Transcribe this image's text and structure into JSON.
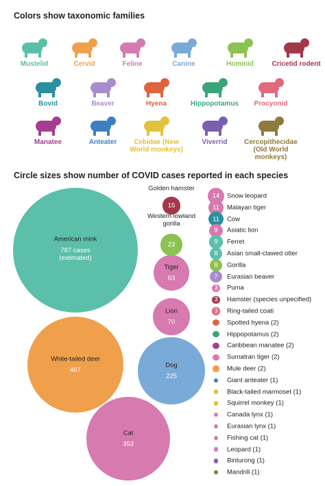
{
  "chart_data": {
    "type": "bubble",
    "legend_title": "Colors show taxonomic families",
    "title": "Circle sizes show number of COVID cases reported in each species",
    "families": [
      {
        "name": "Mustelid",
        "color": "#5bbfa9"
      },
      {
        "name": "Cervid",
        "color": "#f0a04b"
      },
      {
        "name": "Feline",
        "color": "#d77aaf"
      },
      {
        "name": "Canine",
        "color": "#7aaad8"
      },
      {
        "name": "Hominid",
        "color": "#8cc251"
      },
      {
        "name": "Cricetid rodent",
        "color": "#a3384b"
      },
      {
        "name": "Bovid",
        "color": "#2b8fa0"
      },
      {
        "name": "Beaver",
        "color": "#a98bd0"
      },
      {
        "name": "Hyena",
        "color": "#e0623f"
      },
      {
        "name": "Hippopotamus",
        "color": "#3aa57a"
      },
      {
        "name": "Procyonid",
        "color": "#e06a7c"
      },
      {
        "name": "Manatee",
        "color": "#a53d91"
      },
      {
        "name": "Anteater",
        "color": "#3f7fc0"
      },
      {
        "name": "Cebidae (New World monkeys)",
        "color": "#e2c23a"
      },
      {
        "name": "Viverrid",
        "color": "#7a5fb0"
      },
      {
        "name": "Cercopithecidae (Old World monkeys)",
        "color": "#8e7a3a"
      }
    ],
    "species": [
      {
        "name": "American mink",
        "value": 787,
        "value_label": "787 cases (estimated)",
        "family": "Mustelid"
      },
      {
        "name": "White-tailed deer",
        "value": 467,
        "value_label": "467",
        "family": "Cervid"
      },
      {
        "name": "Cat",
        "value": 353,
        "value_label": "353",
        "family": "Feline"
      },
      {
        "name": "Dog",
        "value": 225,
        "value_label": "225",
        "family": "Canine"
      },
      {
        "name": "Lion",
        "value": 70,
        "value_label": "70",
        "family": "Feline"
      },
      {
        "name": "Tiger",
        "value": 63,
        "value_label": "63",
        "family": "Feline"
      },
      {
        "name": "Western lowland gorilla",
        "value": 23,
        "value_label": "23",
        "family": "Hominid"
      },
      {
        "name": "Golden hamster",
        "value": 15,
        "value_label": "15",
        "family": "Cricetid rodent"
      },
      {
        "name": "Snow leopard",
        "value": 14,
        "value_label": "14",
        "family": "Feline"
      },
      {
        "name": "Malayan tiger",
        "value": 11,
        "value_label": "11",
        "family": "Feline"
      },
      {
        "name": "Cow",
        "value": 11,
        "value_label": "11",
        "family": "Bovid"
      },
      {
        "name": "Asiatic lion",
        "value": 9,
        "value_label": "9",
        "family": "Feline"
      },
      {
        "name": "Ferret",
        "value": 9,
        "value_label": "9",
        "family": "Mustelid"
      },
      {
        "name": "Asian small-clawed otter",
        "value": 8,
        "value_label": "8",
        "family": "Mustelid"
      },
      {
        "name": "Gorilla",
        "value": 8,
        "value_label": "8",
        "family": "Hominid"
      },
      {
        "name": "Eurasian beaver",
        "value": 7,
        "value_label": "7",
        "family": "Beaver"
      },
      {
        "name": "Puma",
        "value": 3,
        "value_label": "3",
        "family": "Feline"
      },
      {
        "name": "Hamster (species unpecified)",
        "value": 3,
        "value_label": "3",
        "family": "Cricetid rodent"
      },
      {
        "name": "Ring-tailed coati",
        "value": 3,
        "value_label": "3",
        "family": "Procyonid"
      },
      {
        "name": "Spotted hyena",
        "value": 2,
        "value_label": "(2)",
        "family": "Hyena"
      },
      {
        "name": "Hippopotamus",
        "value": 2,
        "value_label": "(2)",
        "family": "Hippopotamus"
      },
      {
        "name": "Caribbean manatee",
        "value": 2,
        "value_label": "(2)",
        "family": "Manatee"
      },
      {
        "name": "Sumatran tiger",
        "value": 2,
        "value_label": "(2)",
        "family": "Feline"
      },
      {
        "name": "Mule deer",
        "value": 2,
        "value_label": "(2)",
        "family": "Cervid"
      },
      {
        "name": "Giant anteater",
        "value": 1,
        "value_label": "(1)",
        "family": "Anteater"
      },
      {
        "name": "Black-tailed marmoset",
        "value": 1,
        "value_label": "(1)",
        "family": "Cebidae (New World monkeys)"
      },
      {
        "name": "Squirrel monkey",
        "value": 1,
        "value_label": "(1)",
        "family": "Cebidae (New World monkeys)"
      },
      {
        "name": "Canada lynx",
        "value": 1,
        "value_label": "(1)",
        "family": "Feline"
      },
      {
        "name": "Eurasian lynx",
        "value": 1,
        "value_label": "(1)",
        "family": "Feline"
      },
      {
        "name": "Fishing cat",
        "value": 1,
        "value_label": "(1)",
        "family": "Feline"
      },
      {
        "name": "Leopard",
        "value": 1,
        "value_label": "(1)",
        "family": "Feline"
      },
      {
        "name": "Binturong",
        "value": 1,
        "value_label": "(1)",
        "family": "Viverrid"
      },
      {
        "name": "Mandrill",
        "value": 1,
        "value_label": "(1)",
        "family": "Cercopithecidae (Old World monkeys)"
      }
    ]
  }
}
